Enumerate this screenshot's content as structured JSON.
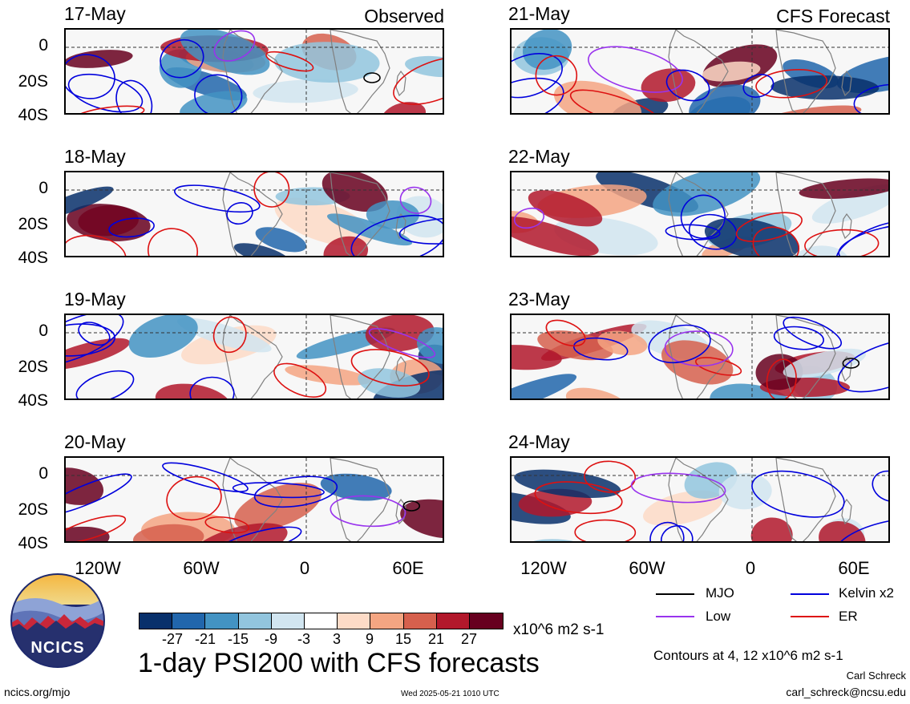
{
  "panels_left": [
    {
      "date": "17-May",
      "header": "Observed"
    },
    {
      "date": "18-May",
      "header": ""
    },
    {
      "date": "19-May",
      "header": ""
    },
    {
      "date": "20-May",
      "header": ""
    }
  ],
  "panels_right": [
    {
      "date": "21-May",
      "header": "CFS Forecast"
    },
    {
      "date": "22-May",
      "header": ""
    },
    {
      "date": "23-May",
      "header": ""
    },
    {
      "date": "24-May",
      "header": ""
    }
  ],
  "y_ticks": [
    "0",
    "20S",
    "40S"
  ],
  "x_ticks": [
    "120W",
    "60W",
    "0",
    "60E"
  ],
  "legend": {
    "mjo": "MJO",
    "kelvin": "Kelvin x2",
    "low": "Low",
    "er": "ER",
    "colors": {
      "mjo": "#000000",
      "kelvin": "#0000dd",
      "low": "#9933ee",
      "er": "#dd1111"
    }
  },
  "colorbar": {
    "ticks": [
      "-27",
      "-21",
      "-15",
      "-9",
      "-3",
      "3",
      "9",
      "15",
      "21",
      "27"
    ],
    "units": "x10^6 m2 s-1",
    "colors": [
      "#08306b",
      "#2166ac",
      "#4393c3",
      "#92c5de",
      "#d1e5f0",
      "#ffffff",
      "#fddbc7",
      "#f4a582",
      "#d6604d",
      "#b2182b",
      "#67001f"
    ]
  },
  "title": "1-day PSI200 with CFS forecasts",
  "contours_note": "Contours at 4, 12 x10^6 m2 s-1",
  "author": "Carl Schreck",
  "email": "carl_schreck@ncsu.edu",
  "url": "ncics.org/mjo",
  "timestamp": "Wed 2025-05-21 1010 UTC",
  "logo_text": "NCICS"
}
